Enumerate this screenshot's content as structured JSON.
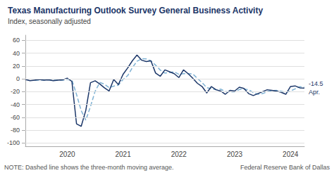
{
  "chart_data": {
    "type": "line",
    "title": "Texas Manufacturing Outlook Survey General Business Activity",
    "subtitle": "Index, seasonally adjusted",
    "note": "NOTE: Dashed line shows the three-month moving average.",
    "credit": "Federal Reserve Bank of Dallas",
    "annotations": [
      "-14.5",
      "Apr."
    ],
    "categories": [
      null,
      null,
      null,
      null,
      null,
      null,
      null,
      null,
      null,
      "2020",
      null,
      null,
      null,
      null,
      null,
      null,
      null,
      null,
      null,
      null,
      null,
      "2021",
      null,
      null,
      null,
      null,
      null,
      null,
      null,
      null,
      null,
      null,
      null,
      "2022",
      null,
      null,
      null,
      null,
      null,
      null,
      null,
      null,
      null,
      null,
      null,
      "2023",
      null,
      null,
      null,
      null,
      null,
      null,
      null,
      null,
      null,
      null,
      null,
      "2024",
      null,
      null,
      null
    ],
    "series": [
      {
        "color": "#1b3668",
        "line_style": "solid",
        "values": [
          -1.0,
          -3.0,
          -2.0,
          -1.0,
          -2.0,
          -1.5,
          -3.0,
          -2.0,
          -1.5,
          1.0,
          -4.0,
          -70.0,
          -74.0,
          -49.0,
          -6.0,
          -3.0,
          -8.0,
          -14.0,
          -19.0,
          -1.0,
          -9.0,
          7.0,
          17.0,
          28.0,
          37.0,
          29.0,
          27.0,
          28.0,
          9.0,
          4.0,
          14.0,
          11.0,
          8.0,
          2.0,
          14.0,
          8.0,
          1.0,
          -7.0,
          -12.0,
          -22.0,
          -12.0,
          -17.0,
          -19.0,
          -24.0,
          -18.0,
          -19.0,
          -13.0,
          -15.0,
          -23.0,
          -26.0,
          -23.0,
          -20.0,
          -17.0,
          -18.0,
          -19.0,
          -21.0,
          -24.0,
          -12.0,
          -11.0,
          -14.0,
          -14.5
        ]
      },
      {
        "color": "#7fb2d4",
        "line_style": "dashed",
        "values": [
          null,
          null,
          -2,
          -2,
          -1.6666666666666667,
          -1.5,
          -2.1666666666666665,
          -2.1666666666666665,
          -2.1666666666666665,
          -0.8333333333333334,
          -1.5,
          -24.333333333333332,
          -49.333333333333336,
          -64.33333333333333,
          -43,
          -19.333333333333332,
          -5.666666666666667,
          -8.333333333333334,
          -13.666666666666666,
          -11.333333333333334,
          -9.666666666666666,
          -1,
          5,
          17.333333333333332,
          27.333333333333332,
          31.333333333333332,
          31,
          28,
          21.333333333333332,
          13.666666666666666,
          9,
          9.666666666666666,
          11,
          7,
          8,
          8,
          7.666666666666667,
          0.6666666666666666,
          -6,
          -13.666666666666666,
          -15.333333333333334,
          -17,
          -16,
          -20,
          -20.333333333333332,
          -20.333333333333332,
          -16.666666666666668,
          -15.666666666666666,
          -17,
          -21.333333333333332,
          -24,
          -23,
          -20,
          -18.333333333333332,
          -18,
          -19.333333333333332,
          -21.333333333333332,
          -19,
          -15.666666666666666,
          -12.333333333333334,
          -13.166666666666666
        ]
      }
    ],
    "ylim": [
      -105,
      68
    ],
    "yticks": [
      -100,
      -80,
      -60,
      -40,
      -20,
      0,
      20,
      40,
      60
    ],
    "grid": true
  }
}
